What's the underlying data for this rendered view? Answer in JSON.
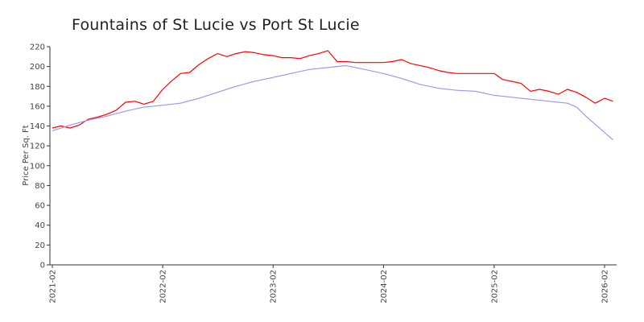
{
  "chart_data": {
    "type": "line",
    "title": "Fountains of St Lucie vs Port St Lucie",
    "ylabel": "Price Per Sq. Ft",
    "xlabel": "",
    "ylim": [
      0,
      220
    ],
    "yticks": [
      0,
      20,
      40,
      60,
      80,
      100,
      120,
      140,
      160,
      180,
      200,
      220
    ],
    "x_tick_labels": [
      "2021-02",
      "2022-02",
      "2023-02",
      "2024-02",
      "2025-02",
      "2026-02"
    ],
    "x_tick_dates": [
      "2021-02-01",
      "2022-02-01",
      "2023-02-01",
      "2024-02-01",
      "2025-02-01",
      "2026-02-01"
    ],
    "x_range": [
      "2021-02-01",
      "2026-03-15"
    ],
    "grid": false,
    "legend": "none",
    "series": [
      {
        "color": "#ff0000",
        "points": [
          [
            "2021-02-01",
            138
          ],
          [
            "2021-03-01",
            140
          ],
          [
            "2021-04-01",
            138
          ],
          [
            "2021-05-01",
            141
          ],
          [
            "2021-06-01",
            147
          ],
          [
            "2021-07-01",
            149
          ],
          [
            "2021-08-01",
            152
          ],
          [
            "2021-09-01",
            156
          ],
          [
            "2021-10-01",
            164
          ],
          [
            "2021-11-01",
            165
          ],
          [
            "2021-12-01",
            162
          ],
          [
            "2022-01-01",
            165
          ],
          [
            "2022-02-01",
            177
          ],
          [
            "2022-03-01",
            185
          ],
          [
            "2022-04-01",
            193
          ],
          [
            "2022-05-01",
            194
          ],
          [
            "2022-06-01",
            202
          ],
          [
            "2022-07-01",
            208
          ],
          [
            "2022-08-01",
            213
          ],
          [
            "2022-09-01",
            210
          ],
          [
            "2022-10-01",
            213
          ],
          [
            "2022-11-01",
            215
          ],
          [
            "2022-12-01",
            214
          ],
          [
            "2023-01-01",
            212
          ],
          [
            "2023-02-01",
            211
          ],
          [
            "2023-03-01",
            209
          ],
          [
            "2023-04-01",
            209
          ],
          [
            "2023-05-01",
            208
          ],
          [
            "2023-06-01",
            211
          ],
          [
            "2023-07-01",
            213
          ],
          [
            "2023-08-01",
            216
          ],
          [
            "2023-09-01",
            205
          ],
          [
            "2023-10-01",
            205
          ],
          [
            "2023-11-01",
            204
          ],
          [
            "2023-12-01",
            204
          ],
          [
            "2024-01-01",
            204
          ],
          [
            "2024-02-01",
            204
          ],
          [
            "2024-03-01",
            205
          ],
          [
            "2024-04-01",
            207
          ],
          [
            "2024-05-01",
            203
          ],
          [
            "2024-06-01",
            201
          ],
          [
            "2024-07-01",
            199
          ],
          [
            "2024-08-01",
            196
          ],
          [
            "2024-09-01",
            194
          ],
          [
            "2024-10-01",
            193
          ],
          [
            "2024-11-01",
            193
          ],
          [
            "2024-12-01",
            193
          ],
          [
            "2025-01-01",
            193
          ],
          [
            "2025-02-01",
            193
          ],
          [
            "2025-03-01",
            187
          ],
          [
            "2025-04-01",
            185
          ],
          [
            "2025-05-01",
            183
          ],
          [
            "2025-06-01",
            175
          ],
          [
            "2025-07-01",
            177
          ],
          [
            "2025-08-01",
            175
          ],
          [
            "2025-09-01",
            172
          ],
          [
            "2025-10-01",
            177
          ],
          [
            "2025-11-01",
            174
          ],
          [
            "2025-12-01",
            169
          ],
          [
            "2026-01-01",
            163
          ],
          [
            "2026-02-01",
            168
          ],
          [
            "2026-03-01",
            165
          ]
        ]
      },
      {
        "color": "#9999ee",
        "points": [
          [
            "2021-02-01",
            135
          ],
          [
            "2021-04-01",
            141
          ],
          [
            "2021-06-01",
            146
          ],
          [
            "2021-08-01",
            150
          ],
          [
            "2021-10-01",
            155
          ],
          [
            "2021-12-01",
            159
          ],
          [
            "2022-02-01",
            161
          ],
          [
            "2022-04-01",
            163
          ],
          [
            "2022-06-01",
            168
          ],
          [
            "2022-08-01",
            174
          ],
          [
            "2022-10-01",
            180
          ],
          [
            "2022-12-01",
            185
          ],
          [
            "2023-02-01",
            189
          ],
          [
            "2023-04-01",
            193
          ],
          [
            "2023-06-01",
            197
          ],
          [
            "2023-08-01",
            199
          ],
          [
            "2023-10-01",
            201
          ],
          [
            "2023-12-01",
            197
          ],
          [
            "2024-02-01",
            193
          ],
          [
            "2024-04-01",
            188
          ],
          [
            "2024-06-01",
            182
          ],
          [
            "2024-08-01",
            178
          ],
          [
            "2024-10-01",
            176
          ],
          [
            "2024-12-01",
            175
          ],
          [
            "2025-02-01",
            171
          ],
          [
            "2025-04-01",
            169
          ],
          [
            "2025-06-01",
            167
          ],
          [
            "2025-08-01",
            165
          ],
          [
            "2025-10-01",
            163
          ],
          [
            "2025-11-01",
            159
          ],
          [
            "2025-12-01",
            150
          ],
          [
            "2026-03-01",
            126
          ]
        ]
      }
    ]
  }
}
